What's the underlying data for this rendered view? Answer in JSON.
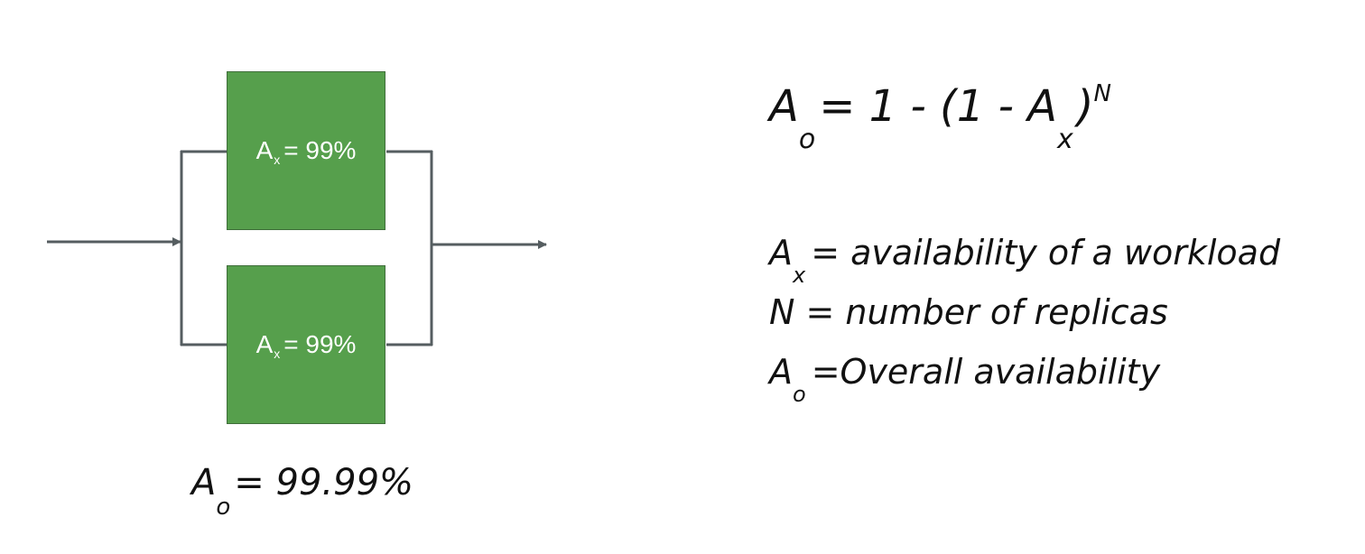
{
  "boxes": [
    {
      "symbol": "A",
      "subscript": "x",
      "rest": "= 99%"
    },
    {
      "symbol": "A",
      "subscript": "x",
      "rest": "= 99%"
    }
  ],
  "result": {
    "symbol": "A",
    "subscript": "o",
    "rest": "= 99.99%"
  },
  "formula": {
    "lhs_symbol": "A",
    "lhs_subscript": "o",
    "middle": "= 1 - (1 - A",
    "inner_subscript": "x",
    "close": ")",
    "exponent": "N"
  },
  "legend": [
    {
      "symbol": "A",
      "subscript": "x",
      "text": "= availability of a workload"
    },
    {
      "symbol": "N",
      "subscript": "",
      "text": " = number of replicas"
    },
    {
      "symbol": "A",
      "subscript": "o",
      "text": "=Overall availability"
    }
  ],
  "colors": {
    "box_fill": "#569f4c",
    "line": "#555d60"
  }
}
